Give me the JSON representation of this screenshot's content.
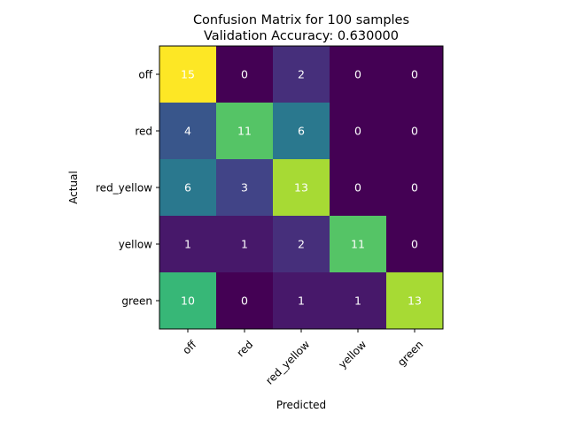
{
  "chart_data": {
    "type": "heatmap",
    "title": "Confusion Matrix for 100 samples",
    "subtitle": "Validation Accuracy: 0.630000",
    "xlabel": "Predicted",
    "ylabel": "Actual",
    "x_categories": [
      "off",
      "red",
      "red_yellow",
      "yellow",
      "green"
    ],
    "y_categories": [
      "off",
      "red",
      "red_yellow",
      "yellow",
      "green"
    ],
    "values": [
      [
        15,
        0,
        2,
        0,
        0
      ],
      [
        4,
        11,
        6,
        0,
        0
      ],
      [
        6,
        3,
        13,
        0,
        0
      ],
      [
        1,
        1,
        2,
        11,
        0
      ],
      [
        10,
        0,
        1,
        1,
        13
      ]
    ],
    "value_range": [
      0,
      15
    ],
    "colormap": "viridis",
    "colors": {
      "low": "#440154",
      "high": "#fde725",
      "label_on_dark": "#ffffff",
      "label_on_light": "#ffffff"
    },
    "grid": false,
    "legend": "none"
  }
}
